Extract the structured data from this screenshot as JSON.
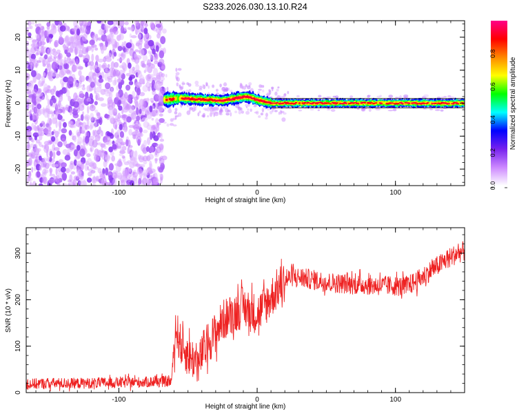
{
  "title": "S233.2026.030.13.10.R24",
  "chart_data": [
    {
      "type": "heatmap",
      "name": "spectrogram",
      "xlabel": "Height of straight line (km)",
      "ylabel": "Frequency (Hz)",
      "xlim": [
        -167,
        150
      ],
      "ylim": [
        -25,
        25
      ],
      "xticks": [
        -100,
        0,
        100
      ],
      "xtick_labels": [
        "-100",
        "0",
        "100"
      ],
      "yticks": [
        -20,
        -10,
        0,
        10,
        20
      ],
      "ytick_labels": [
        "-20",
        "-10",
        "0",
        "10",
        "20"
      ],
      "grid": false,
      "signal_onset_km": -67,
      "noise_region_km": [
        -167,
        -67
      ],
      "ridge": {
        "x": [
          -67,
          -55,
          -45,
          -35,
          -25,
          -15,
          -8,
          -3,
          0,
          5,
          10,
          30,
          60,
          90,
          120,
          150
        ],
        "y": [
          1,
          1.5,
          1.2,
          1.0,
          0.8,
          1.5,
          2.0,
          1.5,
          1.0,
          0.5,
          0.0,
          0.0,
          0.0,
          0.0,
          0.0,
          0.0
        ]
      },
      "colorbar": {
        "label": "Normalized spectral amplitude",
        "range": [
          0,
          1
        ],
        "ticks": [
          0,
          0.2,
          0.4,
          0.6,
          0.8
        ],
        "tick_labels": [
          "0.0",
          "0.2",
          "0.4",
          "0.6",
          "0.8"
        ],
        "colors": [
          "#ffffff",
          "#cc88ff",
          "#7722ee",
          "#0000ff",
          "#00ffff",
          "#00ff00",
          "#ffff00",
          "#ff8800",
          "#ff0000",
          "#ff0088"
        ]
      }
    },
    {
      "type": "line",
      "name": "snr",
      "xlabel": "Height of straight line (km)",
      "ylabel": "SNR (10 * v/v)",
      "xlim": [
        -167,
        150
      ],
      "ylim": [
        0,
        355
      ],
      "xticks": [
        -100,
        0,
        100
      ],
      "xtick_labels": [
        "-100",
        "0",
        "100"
      ],
      "yticks": [
        0,
        100,
        200,
        300
      ],
      "ytick_labels": [
        "0",
        "100",
        "200",
        "300"
      ],
      "grid": false,
      "color": "#ee2222",
      "series": [
        {
          "name": "SNR",
          "x": [
            -167,
            -150,
            -130,
            -110,
            -90,
            -75,
            -62,
            -59,
            -57,
            -55,
            -50,
            -45,
            -42,
            -40,
            -35,
            -30,
            -25,
            -20,
            -15,
            -10,
            -5,
            0,
            5,
            10,
            15,
            20,
            25,
            30,
            40,
            50,
            60,
            70,
            80,
            90,
            100,
            105,
            110,
            115,
            120,
            125,
            130,
            135,
            140,
            145,
            150
          ],
          "values": [
            18,
            20,
            20,
            21,
            22,
            23,
            24,
            140,
            120,
            100,
            80,
            70,
            60,
            85,
            110,
            130,
            155,
            165,
            175,
            185,
            175,
            170,
            185,
            205,
            225,
            240,
            250,
            248,
            243,
            238,
            235,
            233,
            232,
            230,
            230,
            228,
            232,
            240,
            250,
            262,
            272,
            282,
            292,
            300,
            305
          ]
        }
      ],
      "noise": [
        {
          "x": [
            -167,
            -60
          ],
          "amp": 12
        },
        {
          "x": [
            -60,
            -25
          ],
          "amp": 45
        },
        {
          "x": [
            -25,
            20
          ],
          "amp": 45
        },
        {
          "x": [
            20,
            150
          ],
          "amp": 22
        }
      ]
    }
  ]
}
